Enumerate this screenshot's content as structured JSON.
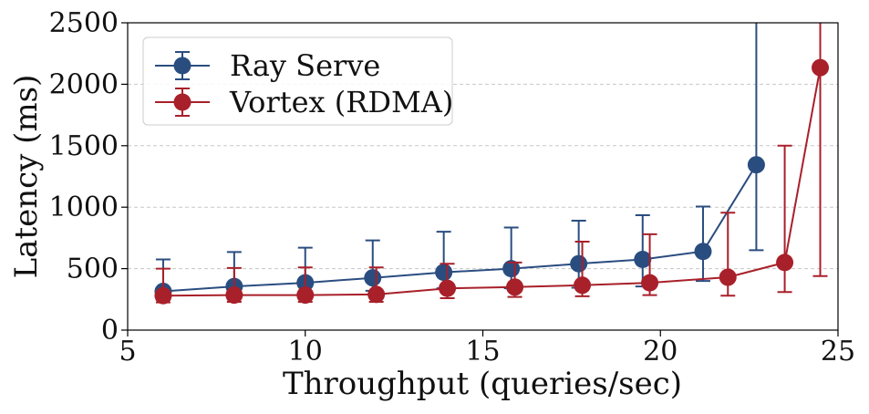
{
  "chart_data": {
    "type": "line",
    "title": "",
    "xlabel": "Throughput (queries/sec)",
    "ylabel": "Latency (ms)",
    "xlim": [
      5,
      25
    ],
    "ylim": [
      0,
      2500
    ],
    "xticks": [
      5,
      10,
      15,
      20,
      25
    ],
    "yticks": [
      0,
      500,
      1000,
      1500,
      2000,
      2500
    ],
    "grid": "horizontal-dashed",
    "legend_position": "top-left",
    "series": [
      {
        "name": "Ray Serve",
        "color": "#2a4d80",
        "marker": "circle",
        "x": [
          6.0,
          8.0,
          10.0,
          11.9,
          13.9,
          15.8,
          17.7,
          19.5,
          21.2,
          22.7
        ],
        "y": [
          315,
          355,
          385,
          425,
          470,
          500,
          540,
          575,
          640,
          1345
        ],
        "err_low": [
          245,
          275,
          300,
          320,
          340,
          340,
          345,
          355,
          400,
          650
        ],
        "err_high": [
          575,
          635,
          670,
          730,
          800,
          835,
          890,
          935,
          1005,
          2500
        ]
      },
      {
        "name": "Vortex (RDMA)",
        "color": "#a8202a",
        "marker": "circle",
        "x": [
          6.0,
          8.0,
          10.0,
          12.0,
          14.0,
          15.9,
          17.8,
          19.7,
          21.9,
          23.5,
          24.5
        ],
        "y": [
          280,
          285,
          285,
          290,
          340,
          350,
          365,
          385,
          430,
          550,
          2135
        ],
        "err_low": [
          225,
          230,
          230,
          230,
          260,
          270,
          275,
          285,
          280,
          310,
          440
        ],
        "err_high": [
          500,
          505,
          510,
          510,
          540,
          550,
          720,
          780,
          955,
          1500,
          2500
        ]
      }
    ]
  }
}
